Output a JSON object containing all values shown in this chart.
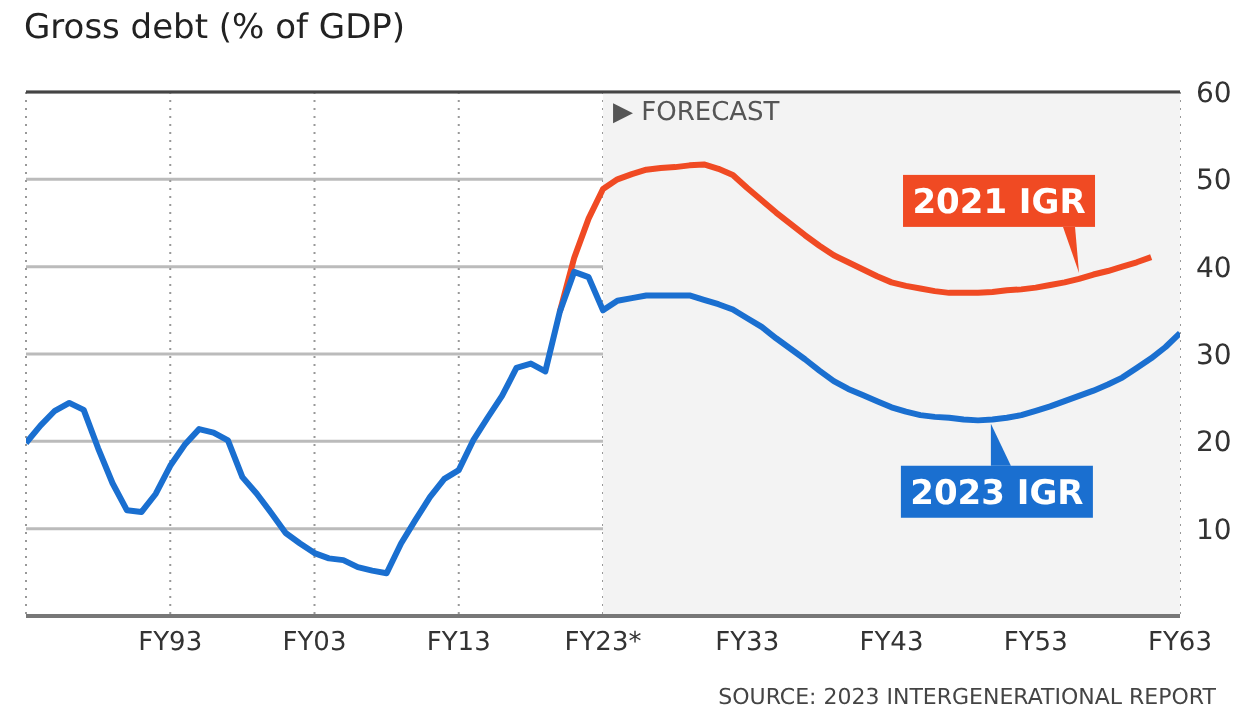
{
  "chart_data": {
    "type": "line",
    "title": "Gross debt (% of GDP)",
    "categories": [
      null,
      null,
      null,
      null,
      null,
      null,
      null,
      null,
      null,
      null,
      "FY93",
      null,
      null,
      null,
      null,
      null,
      null,
      null,
      null,
      null,
      "FY03",
      null,
      null,
      null,
      null,
      null,
      null,
      null,
      null,
      null,
      "FY13",
      null,
      null,
      null,
      null,
      null,
      null,
      null,
      null,
      null,
      "FY23*",
      null,
      null,
      null,
      null,
      null,
      null,
      null,
      null,
      null,
      "FY33",
      null,
      null,
      null,
      null,
      null,
      null,
      null,
      null,
      null,
      "FY43",
      null,
      null,
      null,
      null,
      null,
      null,
      null,
      null,
      null,
      "FY53",
      null,
      null,
      null,
      null,
      null,
      null,
      null,
      null,
      null,
      "FY63"
    ],
    "ylim": [
      0,
      60
    ],
    "yticks": [
      10,
      20,
      30,
      40,
      50,
      60
    ],
    "grid": true,
    "legend": "right",
    "bands": [
      {
        "axis": "x",
        "from": "FY23*",
        "to": "FY63",
        "label": "▶ FORECAST",
        "color": "#f3f3f3"
      }
    ],
    "annotations": [
      "SOURCE: 2023 INTERGENERATIONAL REPORT"
    ],
    "series": [
      {
        "name": "2021 IGR",
        "color": "#f04a23",
        "values": [
          null,
          null,
          null,
          null,
          null,
          null,
          null,
          null,
          null,
          null,
          null,
          null,
          null,
          null,
          null,
          null,
          null,
          null,
          null,
          null,
          null,
          null,
          null,
          null,
          null,
          null,
          null,
          null,
          null,
          null,
          null,
          null,
          null,
          null,
          null,
          null,
          null,
          34.8,
          41,
          45.5,
          48.9,
          50,
          50.6,
          51.1,
          51.3,
          51.4,
          51.6,
          51.7,
          51.2,
          50.5,
          49,
          47.6,
          46.2,
          44.9,
          43.6,
          42.4,
          41.3,
          40.5,
          39.7,
          38.9,
          38.2,
          37.8,
          37.5,
          37.2,
          37,
          37,
          37,
          37.1,
          37.3,
          37.4,
          37.6,
          37.9,
          38.2,
          38.6,
          39.1,
          39.5,
          40,
          40.5,
          41.1,
          null,
          null
        ]
      },
      {
        "name": "2023 IGR",
        "color": "#1a6fd0",
        "values": [
          19.8,
          21.8,
          23.5,
          24.4,
          23.6,
          19.2,
          15.2,
          12.1,
          11.9,
          14,
          17.2,
          19.6,
          21.4,
          21,
          20.1,
          15.9,
          14,
          11.8,
          9.5,
          8.3,
          7.2,
          6.6,
          6.4,
          5.6,
          5.2,
          4.9,
          8.3,
          11,
          13.6,
          15.7,
          16.7,
          20.1,
          22.7,
          25.2,
          28.4,
          28.9,
          28,
          34.8,
          39.4,
          38.8,
          35,
          36.1,
          36.4,
          36.7,
          36.7,
          36.7,
          36.7,
          36.2,
          35.7,
          35.1,
          34.1,
          33.1,
          31.8,
          30.6,
          29.4,
          28.1,
          26.9,
          26,
          25.3,
          24.6,
          23.9,
          23.4,
          23,
          22.8,
          22.7,
          22.5,
          22.4,
          22.5,
          22.7,
          23,
          23.5,
          24,
          24.6,
          25.2,
          25.8,
          26.5,
          27.3,
          28.4,
          29.5,
          30.8,
          32.4
        ]
      }
    ]
  }
}
